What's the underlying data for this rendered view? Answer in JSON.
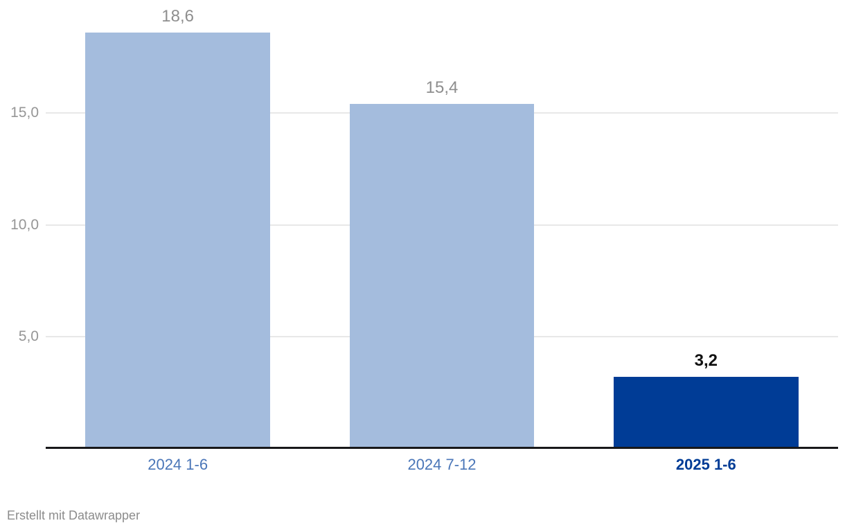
{
  "chart_data": {
    "type": "bar",
    "categories": [
      "2024 1-6",
      "2024 7-12",
      "2025 1-6"
    ],
    "values": [
      18.6,
      15.4,
      3.2
    ],
    "value_labels": [
      "18,6",
      "15,4",
      "3,2"
    ],
    "title": "",
    "xlabel": "",
    "ylabel": "",
    "ylim": [
      0,
      20
    ],
    "yticks": [
      5,
      10,
      15
    ],
    "ytick_labels": [
      "5,0",
      "10,0",
      "15,0"
    ],
    "grid": true,
    "legend": false,
    "highlight_index": 2,
    "colors": {
      "bar": "#a4bcdd",
      "bar_highlight": "#003c96",
      "value_label": "#8e8e8e",
      "value_label_highlight": "#111111",
      "category_label": "#4a76b8",
      "category_label_highlight": "#003c96",
      "ytick_label": "#969696",
      "gridline": "#e8e8e8",
      "axis_line": "#18181a"
    }
  },
  "footer": {
    "attribution": "Erstellt mit Datawrapper"
  }
}
